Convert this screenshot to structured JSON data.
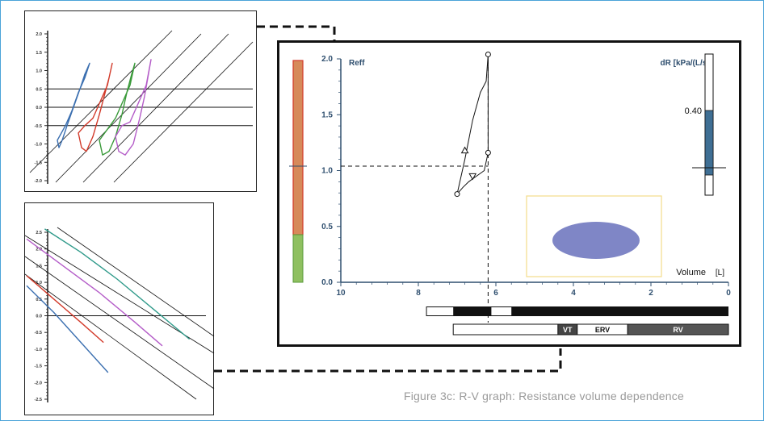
{
  "caption": "Figure 3c: R-V graph: Resistance volume dependence",
  "colors": {
    "frame": "#4aa3d8",
    "axis": "#2f4f6f",
    "orange_bar": "#d68a5a",
    "orange_bar_border": "#d23a2a",
    "green_bar": "#8fc060",
    "dr_fill": "#3f6f94",
    "ellipse": "#7f86c6",
    "ellipse_box": "#f4dc8a",
    "blue": "#3b6fb0",
    "red": "#d23a2a",
    "green": "#3a9a3a",
    "purple": "#b45cc8",
    "teal": "#2f9a8a"
  },
  "chart_data": [
    {
      "type": "line",
      "panel": "top-left",
      "yticks": [
        "2.0",
        "1.5",
        "1.0",
        "0.5",
        "0.0",
        "-0.5",
        "-1.0",
        "-1.5",
        "-2.0"
      ],
      "ylim": [
        -2.0,
        2.0
      ],
      "reference_lines_y": [
        0.5,
        0.0,
        -0.5
      ],
      "series": [
        {
          "color": "#3b6fb0",
          "values": [
            [
              0,
              -0.9
            ],
            [
              2,
              -1.1
            ],
            [
              6,
              -0.9
            ],
            [
              12,
              -0.5
            ],
            [
              20,
              0.0
            ],
            [
              28,
              0.5
            ],
            [
              34,
              0.9
            ],
            [
              40,
              1.2
            ],
            [
              34,
              0.8
            ],
            [
              26,
              0.4
            ],
            [
              18,
              -0.1
            ],
            [
              10,
              -0.5
            ]
          ]
        },
        {
          "color": "#d23a2a",
          "values": [
            [
              26,
              -0.7
            ],
            [
              30,
              -1.1
            ],
            [
              36,
              -1.2
            ],
            [
              44,
              -0.8
            ],
            [
              52,
              -0.2
            ],
            [
              58,
              0.3
            ],
            [
              64,
              0.8
            ],
            [
              68,
              1.2
            ],
            [
              62,
              0.6
            ],
            [
              54,
              0.2
            ],
            [
              44,
              -0.3
            ],
            [
              34,
              -0.5
            ]
          ]
        },
        {
          "color": "#3a9a3a",
          "values": [
            [
              52,
              -0.9
            ],
            [
              56,
              -1.3
            ],
            [
              64,
              -1.2
            ],
            [
              72,
              -0.8
            ],
            [
              80,
              -0.2
            ],
            [
              86,
              0.4
            ],
            [
              92,
              0.9
            ],
            [
              96,
              1.2
            ],
            [
              90,
              0.6
            ],
            [
              82,
              0.2
            ],
            [
              72,
              -0.3
            ],
            [
              62,
              -0.6
            ]
          ]
        },
        {
          "color": "#b45cc8",
          "values": [
            [
              72,
              -0.8
            ],
            [
              76,
              -1.2
            ],
            [
              84,
              -1.3
            ],
            [
              94,
              -1.0
            ],
            [
              102,
              -0.3
            ],
            [
              108,
              0.3
            ],
            [
              112,
              0.8
            ],
            [
              116,
              1.3
            ],
            [
              110,
              0.6
            ],
            [
              100,
              0.1
            ],
            [
              90,
              -0.4
            ],
            [
              80,
              -0.5
            ]
          ]
        }
      ]
    },
    {
      "type": "line",
      "panel": "bottom-left",
      "yticks": [
        "2.5",
        "2.0",
        "1.5",
        "1.0",
        "0.5",
        "0.0",
        "-0.5",
        "-1.0",
        "-1.5",
        "-2.0",
        "-2.5"
      ],
      "ylim": [
        -2.5,
        2.5
      ],
      "reference_lines_y": [
        0.0
      ],
      "series": [
        {
          "color": "#3b6fb0",
          "values": [
            [
              0,
              0.9
            ],
            [
              30,
              0.1
            ],
            [
              60,
              -0.8
            ],
            [
              90,
              -1.7
            ]
          ]
        },
        {
          "color": "#d23a2a",
          "values": [
            [
              0,
              1.2
            ],
            [
              30,
              0.5
            ],
            [
              60,
              -0.2
            ],
            [
              85,
              -0.8
            ]
          ]
        },
        {
          "color": "#b45cc8",
          "values": [
            [
              0,
              2.3
            ],
            [
              40,
              1.5
            ],
            [
              80,
              0.7
            ],
            [
              120,
              -0.2
            ],
            [
              150,
              -0.9
            ]
          ]
        },
        {
          "color": "#2f9a8a",
          "values": [
            [
              20,
              2.6
            ],
            [
              60,
              1.9
            ],
            [
              100,
              1.1
            ],
            [
              140,
              0.2
            ],
            [
              180,
              -0.7
            ]
          ]
        }
      ]
    },
    {
      "type": "line",
      "panel": "main",
      "title_left": "Reff",
      "title_right": "dR [kPa/(L/s)]",
      "xlabel": "Volume",
      "xunit": "[L]",
      "xticks": [
        "10",
        "8",
        "6",
        "4",
        "2",
        "0"
      ],
      "xlim": [
        10,
        0
      ],
      "yticks": [
        "2.0",
        "1.5",
        "1.0",
        "0.5",
        "0.0"
      ],
      "ylim": [
        0,
        2.0
      ],
      "crosshair": {
        "x": 6.2,
        "y": 1.04
      },
      "series": [
        {
          "name": "",
          "values": [
            [
              7.0,
              0.79
            ],
            [
              6.8,
              1.1
            ],
            [
              6.6,
              1.45
            ],
            [
              6.4,
              1.7
            ],
            [
              6.25,
              1.8
            ],
            [
              6.2,
              2.04
            ],
            [
              6.2,
              1.16
            ],
            [
              6.3,
              1.0
            ],
            [
              6.5,
              0.95
            ],
            [
              6.7,
              0.9
            ],
            [
              6.85,
              0.85
            ],
            [
              7.0,
              0.79
            ]
          ]
        }
      ],
      "markers": [
        {
          "shape": "circle",
          "x": 7.0,
          "y": 0.79
        },
        {
          "shape": "triangle-up",
          "x": 6.8,
          "y": 1.18
        },
        {
          "shape": "circle",
          "x": 6.2,
          "y": 2.04
        },
        {
          "shape": "circle",
          "x": 6.2,
          "y": 1.16
        },
        {
          "shape": "triangle-down",
          "x": 6.6,
          "y": 0.95
        }
      ],
      "dr_value_label": "0.40",
      "dr_fraction": 0.47,
      "segments": [
        {
          "label": "VT"
        },
        {
          "label": "ERV"
        },
        {
          "label": "RV"
        }
      ]
    }
  ]
}
